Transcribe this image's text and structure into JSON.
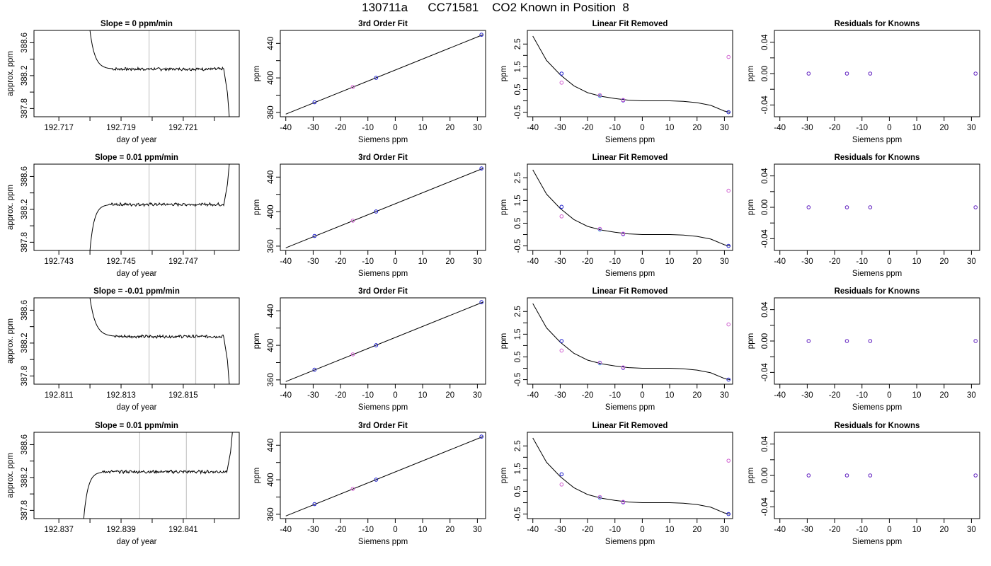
{
  "figure": {
    "title": "130711a      CC71581    CO2 Known in Position  8"
  },
  "chart_data": [
    {
      "row": 1,
      "type": "line",
      "title": "Slope =  0  ppm/min",
      "xlabel": "day of year",
      "ylabel": "approx. ppm",
      "xlim": [
        192.7162,
        192.7228
      ],
      "ylim": [
        387.7,
        388.75
      ],
      "xticks": [
        "192.717",
        "192.719",
        "192.721"
      ],
      "xticks_minor": [
        192.718,
        192.72,
        192.722
      ],
      "yticks": [
        "387.8",
        "388.2",
        "388.6"
      ],
      "yticks_minor": [
        388.0,
        388.4
      ],
      "vlines": [
        192.7199,
        192.7214
      ],
      "trace_shape": "drop-in",
      "trace": {
        "start": 192.718,
        "settle": 192.7187,
        "end": 192.7223,
        "level": 388.28,
        "start_level": 388.75,
        "end_level": 387.7
      }
    },
    {
      "row": 1,
      "type": "scatter",
      "title": "3rd Order Fit",
      "xlabel": "Siemens ppm",
      "ylabel": "ppm",
      "xlim": [
        -42,
        33
      ],
      "ylim": [
        355,
        455
      ],
      "xticks": [
        "-40",
        "-30",
        "-20",
        "-10",
        "0",
        "10",
        "20",
        "30"
      ],
      "yticks": [
        "360",
        "400",
        "440"
      ],
      "yticks_minor": [
        380,
        420
      ],
      "fit_line": [
        [
          -40,
          358
        ],
        [
          32,
          450
        ]
      ],
      "points": [
        {
          "x": -29.5,
          "y": 371.8,
          "color": "#1a1acc"
        },
        {
          "x": -15.5,
          "y": 389.5,
          "color": "#d060d0"
        },
        {
          "x": -7.0,
          "y": 400.1,
          "color": "#1a1acc"
        },
        {
          "x": 31.5,
          "y": 450.0,
          "color": "#1a1acc"
        }
      ]
    },
    {
      "row": 1,
      "type": "scatter",
      "title": "Linear Fit Removed",
      "xlabel": "Siemens ppm",
      "ylabel": "ppm",
      "xlim": [
        -42,
        33
      ],
      "ylim": [
        -0.7,
        3.1
      ],
      "xticks": [
        "-40",
        "-30",
        "-20",
        "-10",
        "0",
        "10",
        "20",
        "30"
      ],
      "yticks": [
        "-0.5",
        "0.5",
        "1.5",
        "2.5"
      ],
      "yticks_minor": [
        0.0,
        1.0,
        2.0
      ],
      "curve": [
        [
          -40,
          2.85
        ],
        [
          -35,
          1.78
        ],
        [
          -30,
          1.15
        ],
        [
          -25,
          0.66
        ],
        [
          -20,
          0.36
        ],
        [
          -15,
          0.2
        ],
        [
          -10,
          0.1
        ],
        [
          -5,
          0.03
        ],
        [
          0,
          0.0
        ],
        [
          5,
          0.0
        ],
        [
          10,
          0.0
        ],
        [
          15,
          -0.02
        ],
        [
          20,
          -0.08
        ],
        [
          25,
          -0.2
        ],
        [
          30,
          -0.45
        ],
        [
          32,
          -0.5
        ]
      ],
      "points": [
        {
          "x": -29.5,
          "y": 1.2,
          "color": "#1a1acc"
        },
        {
          "x": -29.5,
          "y": 0.8,
          "color": "#d060d0"
        },
        {
          "x": -15.5,
          "y": 0.22,
          "color": "#2aa8e0"
        },
        {
          "x": -15.5,
          "y": 0.25,
          "color": "#d060d0"
        },
        {
          "x": -7.0,
          "y": 0.02,
          "color": "#1a1acc"
        },
        {
          "x": -7.0,
          "y": 0.04,
          "color": "#d060d0"
        },
        {
          "x": 31.5,
          "y": 1.93,
          "color": "#d060d0"
        },
        {
          "x": 31.5,
          "y": -0.5,
          "color": "#1a1acc"
        }
      ]
    },
    {
      "row": 1,
      "type": "scatter",
      "title": "Residuals for Knowns",
      "xlabel": "Siemens ppm",
      "ylabel": "ppm",
      "xlim": [
        -42,
        33
      ],
      "ylim": [
        -0.055,
        0.055
      ],
      "xticks": [
        "-40",
        "-30",
        "-20",
        "-10",
        "0",
        "10",
        "20",
        "30"
      ],
      "yticks": [
        "-0.04",
        "0.00",
        "0.04"
      ],
      "yticks_minor": [
        -0.02,
        0.02
      ],
      "points": [
        {
          "x": -29.5,
          "y": 0.0,
          "color": "#6020c0"
        },
        {
          "x": -15.5,
          "y": 0.0,
          "color": "#6020c0"
        },
        {
          "x": -7.0,
          "y": 0.0,
          "color": "#6020c0"
        },
        {
          "x": 31.5,
          "y": 0.0,
          "color": "#6020c0"
        }
      ]
    },
    {
      "row": 2,
      "type": "line",
      "title": "Slope =  0.01  ppm/min",
      "xlabel": "day of year",
      "ylabel": "approx. ppm",
      "xlim": [
        192.7422,
        192.7488
      ],
      "ylim": [
        387.7,
        388.75
      ],
      "xticks": [
        "192.743",
        "192.745",
        "192.747"
      ],
      "xticks_minor": [
        192.744,
        192.746,
        192.748
      ],
      "yticks": [
        "387.8",
        "388.2",
        "388.6"
      ],
      "yticks_minor": [
        388.0,
        388.4
      ],
      "vlines": [
        192.7459,
        192.7474
      ],
      "trace_shape": "rise",
      "trace": {
        "start": 192.744,
        "settle": 192.7446,
        "end": 192.7483,
        "level": 388.26,
        "start_level": 387.7,
        "end_level": 388.75
      }
    },
    {
      "row": 2,
      "type": "scatter",
      "title": "3rd Order Fit",
      "xlabel": "Siemens ppm",
      "ylabel": "ppm",
      "xlim": [
        -42,
        33
      ],
      "ylim": [
        355,
        455
      ],
      "xticks": [
        "-40",
        "-30",
        "-20",
        "-10",
        "0",
        "10",
        "20",
        "30"
      ],
      "yticks": [
        "360",
        "400",
        "440"
      ],
      "yticks_minor": [
        380,
        420
      ],
      "fit_line": [
        [
          -40,
          358
        ],
        [
          32,
          450
        ]
      ],
      "points": [
        {
          "x": -29.5,
          "y": 371.8,
          "color": "#1a1acc"
        },
        {
          "x": -15.5,
          "y": 389.5,
          "color": "#d060d0"
        },
        {
          "x": -7.0,
          "y": 400.1,
          "color": "#1a1acc"
        },
        {
          "x": 31.5,
          "y": 450.0,
          "color": "#1a1acc"
        }
      ]
    },
    {
      "row": 2,
      "type": "scatter",
      "title": "Linear Fit Removed",
      "xlabel": "Siemens ppm",
      "ylabel": "ppm",
      "xlim": [
        -42,
        33
      ],
      "ylim": [
        -0.7,
        3.1
      ],
      "xticks": [
        "-40",
        "-30",
        "-20",
        "-10",
        "0",
        "10",
        "20",
        "30"
      ],
      "yticks": [
        "-0.5",
        "0.5",
        "1.5",
        "2.5"
      ],
      "yticks_minor": [
        0.0,
        1.0,
        2.0
      ],
      "curve": [
        [
          -40,
          2.85
        ],
        [
          -35,
          1.78
        ],
        [
          -30,
          1.15
        ],
        [
          -25,
          0.66
        ],
        [
          -20,
          0.36
        ],
        [
          -15,
          0.2
        ],
        [
          -10,
          0.1
        ],
        [
          -5,
          0.03
        ],
        [
          0,
          0.0
        ],
        [
          5,
          0.0
        ],
        [
          10,
          0.0
        ],
        [
          15,
          -0.02
        ],
        [
          20,
          -0.08
        ],
        [
          25,
          -0.2
        ],
        [
          30,
          -0.45
        ],
        [
          32,
          -0.5
        ]
      ],
      "points": [
        {
          "x": -29.5,
          "y": 1.22,
          "color": "#1a1acc"
        },
        {
          "x": -29.5,
          "y": 0.8,
          "color": "#d060d0"
        },
        {
          "x": -15.5,
          "y": 0.22,
          "color": "#2aa8e0"
        },
        {
          "x": -15.5,
          "y": 0.25,
          "color": "#d060d0"
        },
        {
          "x": -7.0,
          "y": 0.02,
          "color": "#1a1acc"
        },
        {
          "x": -7.0,
          "y": 0.04,
          "color": "#d060d0"
        },
        {
          "x": 31.5,
          "y": 1.93,
          "color": "#d060d0"
        },
        {
          "x": 31.5,
          "y": -0.5,
          "color": "#1a1acc"
        }
      ]
    },
    {
      "row": 2,
      "type": "scatter",
      "title": "Residuals for Knowns",
      "xlabel": "Siemens ppm",
      "ylabel": "ppm",
      "xlim": [
        -42,
        33
      ],
      "ylim": [
        -0.055,
        0.055
      ],
      "xticks": [
        "-40",
        "-30",
        "-20",
        "-10",
        "0",
        "10",
        "20",
        "30"
      ],
      "yticks": [
        "-0.04",
        "0.00",
        "0.04"
      ],
      "yticks_minor": [
        -0.02,
        0.02
      ],
      "points": [
        {
          "x": -29.5,
          "y": 0.0,
          "color": "#6020c0"
        },
        {
          "x": -15.5,
          "y": 0.0,
          "color": "#6020c0"
        },
        {
          "x": -7.0,
          "y": 0.0,
          "color": "#6020c0"
        },
        {
          "x": 31.5,
          "y": 0.0,
          "color": "#6020c0"
        }
      ]
    },
    {
      "row": 3,
      "type": "line",
      "title": "Slope =  -0.01  ppm/min",
      "xlabel": "day of year",
      "ylabel": "approx. ppm",
      "xlim": [
        192.8102,
        192.8168
      ],
      "ylim": [
        387.7,
        388.75
      ],
      "xticks": [
        "192.811",
        "192.813",
        "192.815"
      ],
      "xticks_minor": [
        192.812,
        192.814,
        192.816
      ],
      "yticks": [
        "387.8",
        "388.2",
        "388.6"
      ],
      "yticks_minor": [
        388.0,
        388.4
      ],
      "vlines": [
        192.8139,
        192.8154
      ],
      "trace_shape": "drop-in",
      "trace": {
        "start": 192.812,
        "settle": 192.8128,
        "end": 192.8163,
        "level": 388.28,
        "start_level": 388.75,
        "end_level": 387.7
      }
    },
    {
      "row": 3,
      "type": "scatter",
      "title": "3rd Order Fit",
      "xlabel": "Siemens ppm",
      "ylabel": "ppm",
      "xlim": [
        -42,
        33
      ],
      "ylim": [
        355,
        455
      ],
      "xticks": [
        "-40",
        "-30",
        "-20",
        "-10",
        "0",
        "10",
        "20",
        "30"
      ],
      "yticks": [
        "360",
        "400",
        "440"
      ],
      "yticks_minor": [
        380,
        420
      ],
      "fit_line": [
        [
          -40,
          358
        ],
        [
          32,
          450
        ]
      ],
      "points": [
        {
          "x": -29.5,
          "y": 371.8,
          "color": "#1a1acc"
        },
        {
          "x": -15.5,
          "y": 389.5,
          "color": "#d060d0"
        },
        {
          "x": -7.0,
          "y": 400.1,
          "color": "#1a1acc"
        },
        {
          "x": 31.5,
          "y": 450.0,
          "color": "#1a1acc"
        }
      ]
    },
    {
      "row": 3,
      "type": "scatter",
      "title": "Linear Fit Removed",
      "xlabel": "Siemens ppm",
      "ylabel": "ppm",
      "xlim": [
        -42,
        33
      ],
      "ylim": [
        -0.7,
        3.1
      ],
      "xticks": [
        "-40",
        "-30",
        "-20",
        "-10",
        "0",
        "10",
        "20",
        "30"
      ],
      "yticks": [
        "-0.5",
        "0.5",
        "1.5",
        "2.5"
      ],
      "yticks_minor": [
        0.0,
        1.0,
        2.0
      ],
      "curve": [
        [
          -40,
          2.85
        ],
        [
          -35,
          1.78
        ],
        [
          -30,
          1.15
        ],
        [
          -25,
          0.66
        ],
        [
          -20,
          0.36
        ],
        [
          -15,
          0.2
        ],
        [
          -10,
          0.1
        ],
        [
          -5,
          0.03
        ],
        [
          0,
          0.0
        ],
        [
          5,
          0.0
        ],
        [
          10,
          0.0
        ],
        [
          15,
          -0.02
        ],
        [
          20,
          -0.08
        ],
        [
          25,
          -0.2
        ],
        [
          30,
          -0.45
        ],
        [
          32,
          -0.5
        ]
      ],
      "points": [
        {
          "x": -29.5,
          "y": 1.2,
          "color": "#1a1acc"
        },
        {
          "x": -29.5,
          "y": 0.78,
          "color": "#d060d0"
        },
        {
          "x": -15.5,
          "y": 0.22,
          "color": "#2aa8e0"
        },
        {
          "x": -15.5,
          "y": 0.25,
          "color": "#d060d0"
        },
        {
          "x": -7.0,
          "y": 0.02,
          "color": "#1a1acc"
        },
        {
          "x": -7.0,
          "y": 0.04,
          "color": "#d060d0"
        },
        {
          "x": 31.5,
          "y": 1.93,
          "color": "#d060d0"
        },
        {
          "x": 31.5,
          "y": -0.5,
          "color": "#1a1acc"
        }
      ]
    },
    {
      "row": 3,
      "type": "scatter",
      "title": "Residuals for Knowns",
      "xlabel": "Siemens ppm",
      "ylabel": "ppm",
      "xlim": [
        -42,
        33
      ],
      "ylim": [
        -0.055,
        0.055
      ],
      "xticks": [
        "-40",
        "-30",
        "-20",
        "-10",
        "0",
        "10",
        "20",
        "30"
      ],
      "yticks": [
        "-0.04",
        "0.00",
        "0.04"
      ],
      "yticks_minor": [
        -0.02,
        0.02
      ],
      "points": [
        {
          "x": -29.5,
          "y": 0.0,
          "color": "#6020c0"
        },
        {
          "x": -15.5,
          "y": 0.0,
          "color": "#6020c0"
        },
        {
          "x": -7.0,
          "y": 0.0,
          "color": "#6020c0"
        },
        {
          "x": 31.5,
          "y": 0.0,
          "color": "#6020c0"
        }
      ]
    },
    {
      "row": 4,
      "type": "line",
      "title": "Slope =  0.01  ppm/min",
      "xlabel": "day of year",
      "ylabel": "approx. ppm",
      "xlim": [
        192.8362,
        192.8428
      ],
      "ylim": [
        387.7,
        388.75
      ],
      "xticks": [
        "192.837",
        "192.839",
        "192.841"
      ],
      "xticks_minor": [
        192.838,
        192.84,
        192.842
      ],
      "yticks": [
        "387.8",
        "388.2",
        "388.6"
      ],
      "yticks_minor": [
        388.0,
        388.4
      ],
      "vlines": [
        192.8396,
        192.8411
      ],
      "trace_shape": "rise",
      "trace": {
        "start": 192.8378,
        "settle": 192.8384,
        "end": 192.8424,
        "level": 388.27,
        "start_level": 387.7,
        "end_level": 388.75
      }
    },
    {
      "row": 4,
      "type": "scatter",
      "title": "3rd Order Fit",
      "xlabel": "Siemens ppm",
      "ylabel": "ppm",
      "xlim": [
        -42,
        33
      ],
      "ylim": [
        355,
        455
      ],
      "xticks": [
        "-40",
        "-30",
        "-20",
        "-10",
        "0",
        "10",
        "20",
        "30"
      ],
      "yticks": [
        "360",
        "400",
        "440"
      ],
      "yticks_minor": [
        380,
        420
      ],
      "fit_line": [
        [
          -40,
          358
        ],
        [
          32,
          450
        ]
      ],
      "points": [
        {
          "x": -29.5,
          "y": 371.8,
          "color": "#1a1acc"
        },
        {
          "x": -15.5,
          "y": 389.5,
          "color": "#d060d0"
        },
        {
          "x": -7.0,
          "y": 400.1,
          "color": "#1a1acc"
        },
        {
          "x": 31.5,
          "y": 450.0,
          "color": "#1a1acc"
        }
      ]
    },
    {
      "row": 4,
      "type": "scatter",
      "title": "Linear Fit Removed",
      "xlabel": "Siemens ppm",
      "ylabel": "ppm",
      "xlim": [
        -42,
        33
      ],
      "ylim": [
        -0.7,
        3.1
      ],
      "xticks": [
        "-40",
        "-30",
        "-20",
        "-10",
        "0",
        "10",
        "20",
        "30"
      ],
      "yticks": [
        "-0.5",
        "0.5",
        "1.5",
        "2.5"
      ],
      "yticks_minor": [
        0.0,
        1.0,
        2.0
      ],
      "curve": [
        [
          -40,
          2.85
        ],
        [
          -35,
          1.78
        ],
        [
          -30,
          1.15
        ],
        [
          -25,
          0.66
        ],
        [
          -20,
          0.36
        ],
        [
          -15,
          0.2
        ],
        [
          -10,
          0.1
        ],
        [
          -5,
          0.03
        ],
        [
          0,
          0.0
        ],
        [
          5,
          0.0
        ],
        [
          10,
          0.0
        ],
        [
          15,
          -0.02
        ],
        [
          20,
          -0.08
        ],
        [
          25,
          -0.2
        ],
        [
          30,
          -0.45
        ],
        [
          32,
          -0.5
        ]
      ],
      "points": [
        {
          "x": -29.5,
          "y": 1.25,
          "color": "#1a1acc"
        },
        {
          "x": -29.5,
          "y": 0.8,
          "color": "#d060d0"
        },
        {
          "x": -15.5,
          "y": 0.22,
          "color": "#2aa8e0"
        },
        {
          "x": -15.5,
          "y": 0.25,
          "color": "#d060d0"
        },
        {
          "x": -7.0,
          "y": 0.02,
          "color": "#1a1acc"
        },
        {
          "x": -7.0,
          "y": 0.04,
          "color": "#d060d0"
        },
        {
          "x": 31.5,
          "y": 1.85,
          "color": "#d060d0"
        },
        {
          "x": 31.5,
          "y": -0.5,
          "color": "#1a1acc"
        }
      ]
    },
    {
      "row": 4,
      "type": "scatter",
      "title": "Residuals for Knowns",
      "xlabel": "Siemens ppm",
      "ylabel": "ppm",
      "xlim": [
        -42,
        33
      ],
      "ylim": [
        -0.055,
        0.055
      ],
      "xticks": [
        "-40",
        "-30",
        "-20",
        "-10",
        "0",
        "10",
        "20",
        "30"
      ],
      "yticks": [
        "-0.04",
        "0.00",
        "0.04"
      ],
      "yticks_minor": [
        -0.02,
        0.02
      ],
      "points": [
        {
          "x": -29.5,
          "y": 0.0,
          "color": "#6020c0"
        },
        {
          "x": -15.5,
          "y": 0.0,
          "color": "#6020c0"
        },
        {
          "x": -7.0,
          "y": 0.0,
          "color": "#6020c0"
        },
        {
          "x": 31.5,
          "y": 0.0,
          "color": "#6020c0"
        }
      ]
    }
  ]
}
